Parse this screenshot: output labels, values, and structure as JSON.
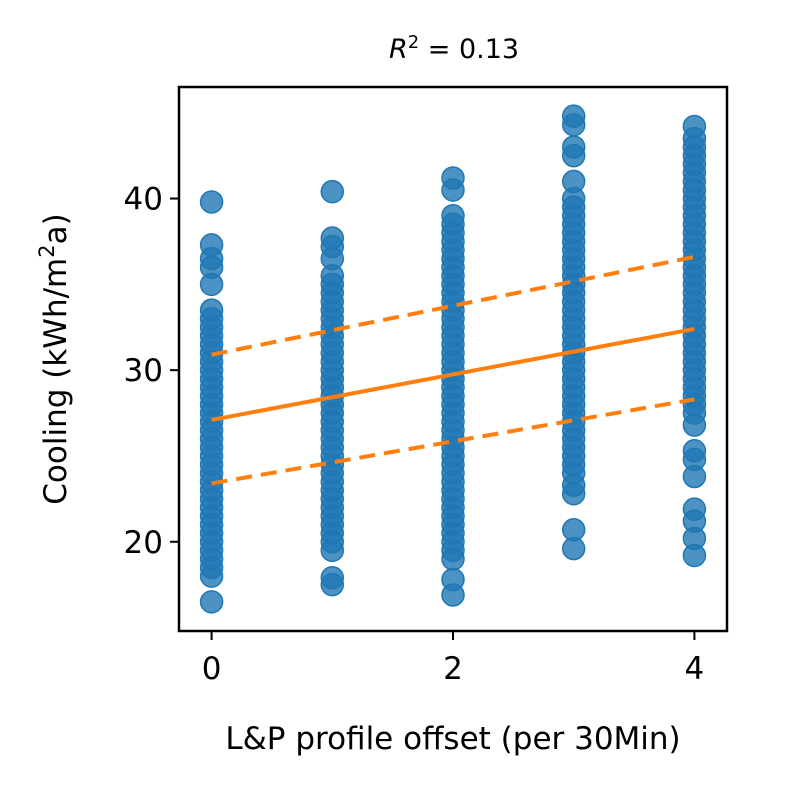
{
  "chart_data": {
    "type": "scatter",
    "title_main": "R",
    "title_sup": "2",
    "title_rest": " = 0.13",
    "xlabel": "L&P profile offset (per 30Min)",
    "ylabel_main": "Cooling (kWh/m",
    "ylabel_sup": "2",
    "ylabel_rest": "a)",
    "xlim": [
      -0.27,
      4.27
    ],
    "ylim": [
      14.8,
      46.5
    ],
    "x_ticks": [
      0,
      2,
      4
    ],
    "y_ticks": [
      20,
      30,
      40
    ],
    "grid": false,
    "point_color": "#1f77b4",
    "line_color": "#ff7f0e",
    "scatter_columns": [
      {
        "x": 0,
        "y": [
          16.5,
          18.0,
          18.5,
          19.0,
          19.5,
          20.0,
          20.5,
          21.0,
          21.5,
          22.0,
          22.5,
          23.0,
          23.5,
          24.0,
          24.5,
          25.0,
          25.5,
          26.0,
          26.5,
          27.0,
          27.5,
          28.0,
          28.5,
          29.0,
          29.5,
          30.0,
          30.5,
          31.0,
          31.5,
          32.0,
          32.5,
          33.0,
          33.5,
          35.0,
          36.0,
          36.5,
          37.3,
          39.8
        ]
      },
      {
        "x": 1,
        "y": [
          17.5,
          17.9,
          19.5,
          20.0,
          20.5,
          21.0,
          21.5,
          22.0,
          22.5,
          23.0,
          23.5,
          24.0,
          24.5,
          25.0,
          25.5,
          26.0,
          26.5,
          27.0,
          27.5,
          28.0,
          28.5,
          29.0,
          29.5,
          30.0,
          30.5,
          31.0,
          31.5,
          32.0,
          32.5,
          33.0,
          33.5,
          34.0,
          34.5,
          35.0,
          35.5,
          36.5,
          37.2,
          37.7,
          40.4
        ]
      },
      {
        "x": 2,
        "y": [
          16.9,
          17.8,
          19.0,
          19.5,
          20.0,
          20.5,
          21.0,
          21.5,
          22.0,
          22.5,
          23.0,
          23.5,
          24.0,
          24.5,
          25.0,
          25.5,
          26.0,
          26.5,
          27.0,
          27.5,
          28.0,
          28.5,
          29.0,
          29.5,
          30.0,
          30.5,
          31.0,
          31.5,
          32.0,
          32.5,
          33.0,
          33.5,
          34.0,
          34.5,
          35.0,
          35.5,
          36.0,
          36.5,
          37.0,
          37.5,
          38.0,
          38.5,
          39.0,
          40.5,
          41.2
        ]
      },
      {
        "x": 3,
        "y": [
          19.6,
          20.7,
          22.8,
          23.3,
          24.0,
          24.5,
          25.0,
          25.5,
          26.0,
          26.5,
          27.0,
          27.5,
          28.0,
          28.5,
          29.0,
          29.5,
          30.0,
          30.5,
          31.0,
          31.5,
          32.0,
          32.5,
          33.0,
          33.5,
          34.0,
          34.5,
          35.0,
          35.5,
          36.0,
          36.5,
          37.0,
          37.5,
          38.0,
          38.5,
          39.0,
          39.5,
          40.0,
          41.0,
          42.5,
          43.0,
          44.3,
          44.8
        ]
      },
      {
        "x": 4,
        "y": [
          19.2,
          20.2,
          21.2,
          21.9,
          23.8,
          24.8,
          25.3,
          26.8,
          27.5,
          28.0,
          28.5,
          29.0,
          29.5,
          30.0,
          30.5,
          31.0,
          31.5,
          32.0,
          32.5,
          33.0,
          33.5,
          34.0,
          34.5,
          35.0,
          35.5,
          36.0,
          36.5,
          37.0,
          37.5,
          38.0,
          38.5,
          39.0,
          39.5,
          40.0,
          40.5,
          41.0,
          41.5,
          42.0,
          42.5,
          43.0,
          43.5,
          44.2
        ]
      }
    ],
    "fit_line": {
      "x": [
        0,
        4
      ],
      "y": [
        27.1,
        32.4
      ]
    },
    "upper_band": {
      "x": [
        0,
        4
      ],
      "y": [
        30.9,
        36.6
      ]
    },
    "lower_band": {
      "x": [
        0,
        4
      ],
      "y": [
        23.4,
        28.3
      ]
    }
  }
}
